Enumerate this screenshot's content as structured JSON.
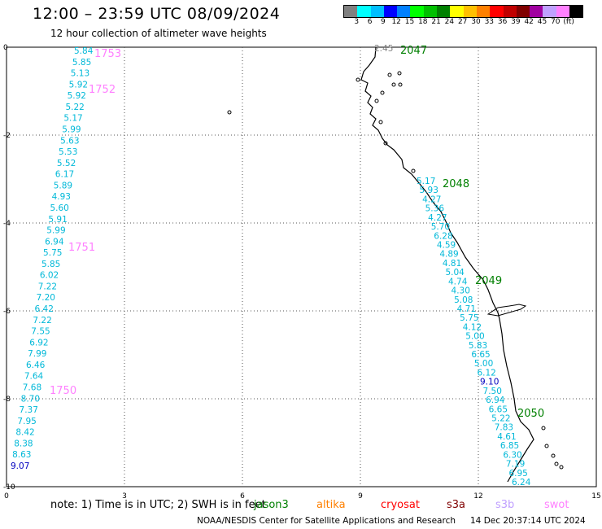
{
  "header": {
    "title": "12:00 – 23:59 UTC 08/09/2024",
    "subtitle": "12 hour collection of altimeter wave heights"
  },
  "colorbar": {
    "colors": [
      "#808080",
      "#00ffff",
      "#00bfff",
      "#0000ff",
      "#0080ff",
      "#00ff00",
      "#00c000",
      "#008000",
      "#ffff00",
      "#ffc000",
      "#ff8000",
      "#ff0000",
      "#c00000",
      "#800000",
      "#a000a0",
      "#c0a0ff",
      "#ff80ff",
      "#000000"
    ],
    "ticks": [
      "3",
      "6",
      "9",
      "12",
      "15",
      "18",
      "21",
      "24",
      "27",
      "30",
      "33",
      "36",
      "39",
      "42",
      "45",
      "70",
      "(ft)"
    ]
  },
  "axes": {
    "x_ticks": [
      "0",
      "3",
      "6",
      "9",
      "12",
      "15"
    ],
    "y_ticks": [
      "0",
      "-2",
      "-4",
      "-6",
      "-8",
      "-10"
    ]
  },
  "passes": [
    {
      "label": "1753",
      "color": "#ff80ff"
    },
    {
      "label": "1752",
      "color": "#ff80ff"
    },
    {
      "label": "1751",
      "color": "#ff80ff"
    },
    {
      "label": "1750",
      "color": "#ff80ff"
    },
    {
      "label": "2047",
      "color": "#008000"
    },
    {
      "label": "2048",
      "color": "#008000"
    },
    {
      "label": "2049",
      "color": "#008000"
    },
    {
      "label": "2050",
      "color": "#008000"
    }
  ],
  "track_left": [
    "5.84",
    "5.85",
    "5.13",
    "5.92",
    "5.92",
    "5.22",
    "5.17",
    "5.99",
    "5.63",
    "5.53",
    "5.52",
    "6.17",
    "5.89",
    "4.93",
    "5.60",
    "5.91",
    "5.99",
    "6.94",
    "5.75",
    "5.85",
    "6.02",
    "7.22",
    "7.20",
    "6.42",
    "7.22",
    "7.55",
    "6.92",
    "7.99",
    "6.46",
    "7.64",
    "7.68",
    "8.70",
    "7.37",
    "7.95",
    "8.42",
    "8.38",
    "8.63",
    "9.07"
  ],
  "track_right": [
    "2.45",
    "5.17",
    "5.93",
    "4.27",
    "5.36",
    "4.27",
    "5.70",
    "6.28",
    "4.59",
    "4.89",
    "4.81",
    "5.04",
    "4.74",
    "4.30",
    "5.08",
    "4.71",
    "5.75",
    "4.12",
    "5.00",
    "5.83",
    "6.65",
    "5.00",
    "6.12",
    "9.10",
    "7.50",
    "6.94",
    "6.65",
    "5.22",
    "7.83",
    "4.61",
    "6.85",
    "6.30",
    "7.19",
    "6.95",
    "6.24"
  ],
  "note": "note:  1) Time is in UTC; 2) SWH is in feet",
  "legend": [
    {
      "label": "jason3",
      "color": "#008000"
    },
    {
      "label": "altika",
      "color": "#ff8000"
    },
    {
      "label": "cryosat",
      "color": "#ff0000"
    },
    {
      "label": "s3a",
      "color": "#800000"
    },
    {
      "label": "s3b",
      "color": "#c0a0ff"
    },
    {
      "label": "swot",
      "color": "#ff80ff"
    }
  ],
  "footer": {
    "credit": "NOAA/NESDIS Center for Satellite Applications and Research",
    "timestamp": "14 Dec 20:37:14 UTC 2024"
  }
}
